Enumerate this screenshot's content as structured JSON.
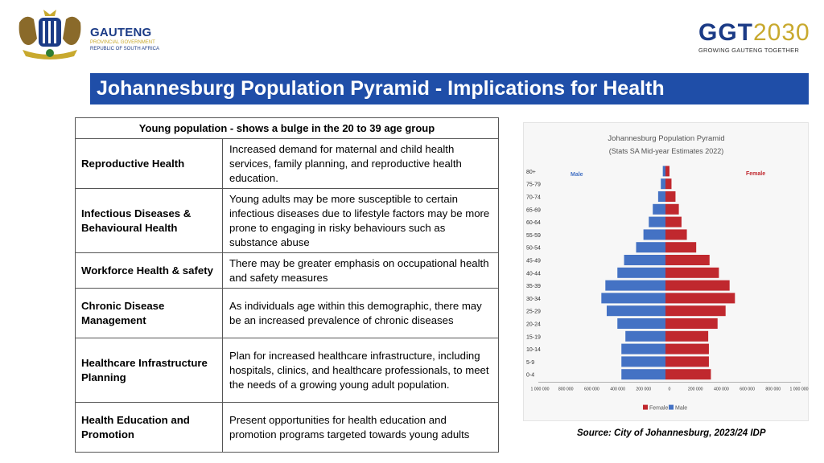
{
  "header": {
    "left_logo": {
      "name": "GAUTENG",
      "line1": "PROVINCIAL GOVERNMENT",
      "line2": "REPUBLIC OF SOUTH AFRICA"
    },
    "right_logo": {
      "part1": "GGT",
      "part2": "2030",
      "tagline": "GROWING GAUTENG TOGETHER"
    }
  },
  "title": "Johannesburg Population Pyramid - Implications for Health",
  "table": {
    "header": "Young population - shows a bulge in the 20 to 39 age group",
    "rows": [
      {
        "label": "Reproductive Health",
        "text": "Increased demand for maternal and child health services, family planning, and reproductive health education."
      },
      {
        "label": "Infectious Diseases & Behavioural Health",
        "text": "Young adults may be more susceptible to certain infectious diseases due to lifestyle factors may be more prone to engaging in risky behaviours such as substance abuse"
      },
      {
        "label": "Workforce Health & safety",
        "text": "There may be greater emphasis on occupational health and safety measures"
      },
      {
        "label": "Chronic Disease Management",
        "text": "As individuals age within this demographic, there may be an increased prevalence of chronic diseases"
      },
      {
        "label": "Healthcare Infrastructure Planning",
        "text": "Plan for increased healthcare infrastructure, including hospitals, clinics, and healthcare professionals, to meet the needs of a growing young adult population."
      },
      {
        "label": "Health Education and Promotion",
        "text": "Present opportunities for  health education and promotion programs targeted towards young adults"
      }
    ]
  },
  "source": "Source: City of Johannesburg, 2023/24 IDP",
  "colors": {
    "male": "#4472c4",
    "female": "#c0282e",
    "title_bar": "#1f4ea8"
  },
  "chart_data": {
    "type": "bar",
    "orientation": "horizontal-pyramid",
    "title": "Johannesburg Population Pyramid",
    "subtitle": "(Stats SA Mid-year Estimates 2022)",
    "categories": [
      "80+",
      "75-79",
      "70-74",
      "65-69",
      "60-64",
      "55-59",
      "50-54",
      "45-49",
      "40-44",
      "35-39",
      "30-34",
      "25-29",
      "20-24",
      "15-19",
      "10-14",
      "5-9",
      "0-4"
    ],
    "series": [
      {
        "name": "Male",
        "values": [
          -20000,
          -35000,
          -55000,
          -95000,
          -125000,
          -165000,
          -220000,
          -310000,
          -360000,
          -450000,
          -480000,
          -440000,
          -360000,
          -300000,
          -330000,
          -330000,
          -330000
        ]
      },
      {
        "name": "Female",
        "values": [
          30000,
          45000,
          75000,
          100000,
          120000,
          160000,
          230000,
          330000,
          400000,
          480000,
          520000,
          450000,
          390000,
          320000,
          325000,
          325000,
          340000
        ]
      }
    ],
    "in_plot_labels": [
      "Male",
      "Female"
    ],
    "xlim": [
      -1000000,
      1000000
    ],
    "x_ticks": [
      "1 000 000",
      "800 000",
      "600 000",
      "400 000",
      "200 000",
      "0",
      "200 000",
      "400 000",
      "600 000",
      "800 000",
      "1 000 000"
    ],
    "legend": [
      "Female",
      "Male"
    ],
    "legend_position": "bottom"
  }
}
